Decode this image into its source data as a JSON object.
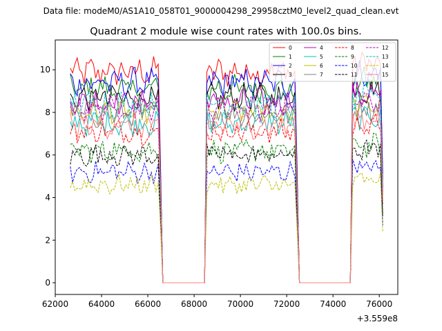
{
  "header": {
    "data_file": "Data file: modeM0/AS1A10_058T01_9000004298_29958cztM0_level2_quad_clean.evt"
  },
  "chart_data": {
    "type": "line",
    "title": "Quadrant 2 module wise count rates with 100.0s bins.",
    "xlabel": "",
    "ylabel": "",
    "x_offset_label": "+3.559e8",
    "xlim": [
      62000,
      76800
    ],
    "ylim": [
      -0.55,
      11.4
    ],
    "xticks": [
      62000,
      64000,
      66000,
      68000,
      70000,
      72000,
      74000,
      76000
    ],
    "xtick_labels": [
      "62000",
      "64000",
      "66000",
      "68000",
      "70000",
      "72000",
      "74000",
      "76000"
    ],
    "yticks": [
      0,
      2,
      4,
      6,
      8,
      10
    ],
    "ytick_labels": [
      "0",
      "2",
      "4",
      "6",
      "8",
      "10"
    ],
    "grid": false,
    "legend_position": "top-right",
    "bin_size_s": 100,
    "segments": [
      {
        "start": 62650,
        "end": 66550
      },
      {
        "start": 68550,
        "end": 72450
      },
      {
        "start": 74850,
        "end": 76150
      }
    ],
    "gaps_value": 0,
    "series": [
      {
        "name": "0",
        "color": "#ff0000",
        "dash": "solid",
        "mean": 9.9
      },
      {
        "name": "1",
        "color": "#008000",
        "dash": "solid",
        "mean": 9.1
      },
      {
        "name": "2",
        "color": "#0000ff",
        "dash": "solid",
        "mean": 9.4
      },
      {
        "name": "3",
        "color": "#000000",
        "dash": "solid",
        "mean": 8.7
      },
      {
        "name": "4",
        "color": "#bf00bf",
        "dash": "solid",
        "mean": 8.5
      },
      {
        "name": "5",
        "color": "#00bfbf",
        "dash": "solid",
        "mean": 7.5
      },
      {
        "name": "6",
        "color": "#bfbf00",
        "dash": "solid",
        "mean": 8.0
      },
      {
        "name": "7",
        "color": "#808080",
        "dash": "solid",
        "mean": 7.9
      },
      {
        "name": "8",
        "color": "#ff0000",
        "dash": "dashed",
        "mean": 7.1
      },
      {
        "name": "9",
        "color": "#008000",
        "dash": "dashed",
        "mean": 6.2
      },
      {
        "name": "10",
        "color": "#0000ff",
        "dash": "dashed",
        "mean": 5.2
      },
      {
        "name": "11",
        "color": "#000000",
        "dash": "dashed",
        "mean": 6.0
      },
      {
        "name": "12",
        "color": "#bf00bf",
        "dash": "dashed",
        "mean": 8.2
      },
      {
        "name": "13",
        "color": "#00bfbf",
        "dash": "dashed",
        "mean": 8.4
      },
      {
        "name": "14",
        "color": "#bfbf00",
        "dash": "dashed",
        "mean": 4.6
      },
      {
        "name": "15",
        "color": "#ff7f7f",
        "dash": "solid",
        "mean": 7.4
      }
    ]
  }
}
